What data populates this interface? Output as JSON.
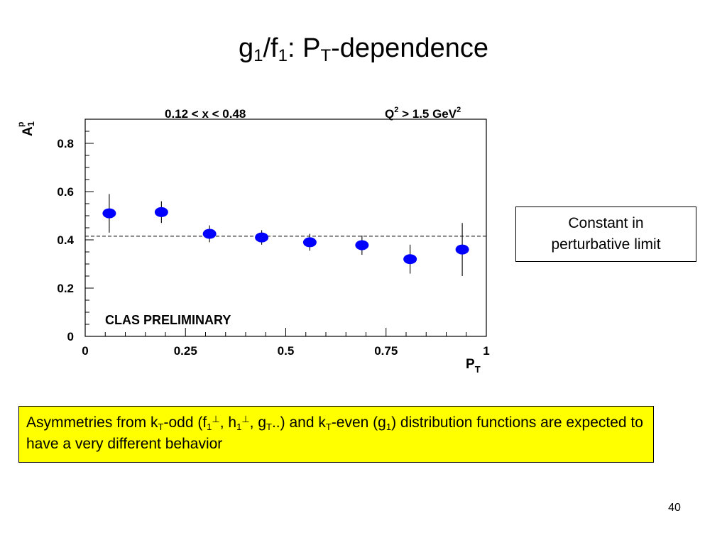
{
  "slide": {
    "title": {
      "g": "g",
      "sub1": "1",
      "slash_f": "/f",
      "sub2": "1",
      "colon_p": ": P",
      "sub_t": "T",
      "rest": "-dependence"
    },
    "constant_box": {
      "text": "Constant in perturbative limit"
    },
    "note": {
      "t1": "Asymmetries from k",
      "t1_sub": "T",
      "t2": "-odd (f",
      "t2_sub": "1",
      "t2_sup": "⊥",
      "t3": ", h",
      "t3_sub": "1",
      "t3_sup": "⊥",
      "t4": ", g",
      "t4_sub": "T",
      "t5": "..) and k",
      "t5_sub": "T",
      "t6": "-even (g",
      "t6_sub": "1",
      "t7": ") distribution functions are expected to have a very different behavior"
    },
    "page_number": "40"
  },
  "chart_data": {
    "type": "scatter",
    "x_range": "0.12 < x < 0.48",
    "q2_base": "Q",
    "q2_exp1": "2",
    "q2_mid": " > 1.5 GeV",
    "q2_exp2": "2",
    "watermark": "CLAS PRELIMINARY",
    "ylabel": "A",
    "ylabel_sub": "1",
    "ylabel_sup": "p",
    "xlabel": "P",
    "xlabel_sub": "T",
    "xlim": [
      0,
      1
    ],
    "ylim": [
      0,
      0.9
    ],
    "xticks": [
      0,
      0.25,
      0.5,
      0.75,
      1
    ],
    "xtick_labels": [
      "0",
      "0.25",
      "0.5",
      "0.75",
      "1"
    ],
    "yticks": [
      0,
      0.2,
      0.4,
      0.6,
      0.8
    ],
    "ytick_labels": [
      "0",
      "0.2",
      "0.4",
      "0.6",
      "0.8"
    ],
    "constant_line": 0.415,
    "marker_color": "#0000ff",
    "grid": false,
    "points": [
      {
        "x": 0.06,
        "y": 0.51,
        "err": 0.08
      },
      {
        "x": 0.19,
        "y": 0.515,
        "err": 0.045
      },
      {
        "x": 0.31,
        "y": 0.425,
        "err": 0.035
      },
      {
        "x": 0.44,
        "y": 0.41,
        "err": 0.03
      },
      {
        "x": 0.56,
        "y": 0.39,
        "err": 0.035
      },
      {
        "x": 0.69,
        "y": 0.378,
        "err": 0.04
      },
      {
        "x": 0.81,
        "y": 0.32,
        "err": 0.06
      },
      {
        "x": 0.94,
        "y": 0.36,
        "err": 0.11
      }
    ]
  }
}
